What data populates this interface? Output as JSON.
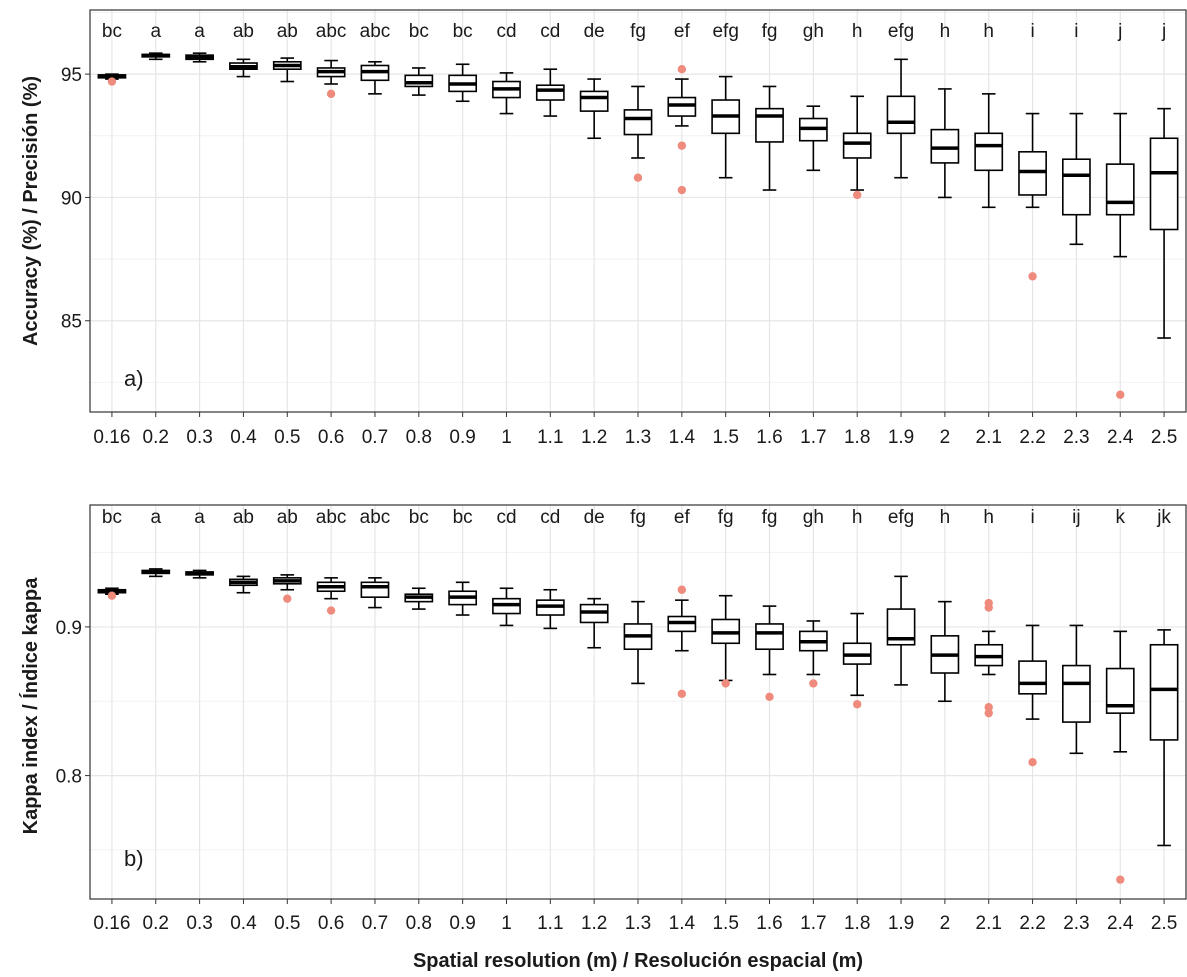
{
  "chart_data": [
    {
      "type": "boxplot",
      "panel_label": "a)",
      "ylabel": "Accuracy (%) / Precisión (%)",
      "xlabel": "",
      "ylim": [
        81.3,
        97.6
      ],
      "yticks": [
        85,
        90,
        95
      ],
      "ytick_labels": [
        "85",
        "90",
        "95"
      ],
      "grid": true,
      "categories": [
        "0.16",
        "0.2",
        "0.3",
        "0.4",
        "0.5",
        "0.6",
        "0.7",
        "0.8",
        "0.9",
        "1",
        "1.1",
        "1.2",
        "1.3",
        "1.4",
        "1.5",
        "1.6",
        "1.7",
        "1.8",
        "1.9",
        "2",
        "2.1",
        "2.2",
        "2.3",
        "2.4",
        "2.5"
      ],
      "significance_letters": [
        "bc",
        "a",
        "a",
        "ab",
        "ab",
        "abc",
        "abc",
        "bc",
        "bc",
        "cd",
        "cd",
        "de",
        "fg",
        "ef",
        "efg",
        "fg",
        "gh",
        "h",
        "efg",
        "h",
        "h",
        "i",
        "i",
        "j",
        "j"
      ],
      "boxes": [
        {
          "low": 94.8,
          "q1": 94.85,
          "median": 94.9,
          "q3": 94.97,
          "high": 95.0,
          "outliers": [
            94.7
          ]
        },
        {
          "low": 95.6,
          "q1": 95.7,
          "median": 95.75,
          "q3": 95.8,
          "high": 95.85,
          "outliers": []
        },
        {
          "low": 95.5,
          "q1": 95.6,
          "median": 95.7,
          "q3": 95.77,
          "high": 95.85,
          "outliers": []
        },
        {
          "low": 94.9,
          "q1": 95.2,
          "median": 95.3,
          "q3": 95.45,
          "high": 95.6,
          "outliers": []
        },
        {
          "low": 94.7,
          "q1": 95.2,
          "median": 95.35,
          "q3": 95.5,
          "high": 95.65,
          "outliers": []
        },
        {
          "low": 94.6,
          "q1": 94.9,
          "median": 95.1,
          "q3": 95.25,
          "high": 95.55,
          "outliers": [
            94.2
          ]
        },
        {
          "low": 94.2,
          "q1": 94.75,
          "median": 95.1,
          "q3": 95.35,
          "high": 95.5,
          "outliers": []
        },
        {
          "low": 94.15,
          "q1": 94.5,
          "median": 94.65,
          "q3": 94.95,
          "high": 95.25,
          "outliers": []
        },
        {
          "low": 93.9,
          "q1": 94.3,
          "median": 94.6,
          "q3": 94.95,
          "high": 95.4,
          "outliers": []
        },
        {
          "low": 93.4,
          "q1": 94.05,
          "median": 94.4,
          "q3": 94.7,
          "high": 95.05,
          "outliers": []
        },
        {
          "low": 93.3,
          "q1": 93.95,
          "median": 94.35,
          "q3": 94.55,
          "high": 95.2,
          "outliers": []
        },
        {
          "low": 92.4,
          "q1": 93.5,
          "median": 94.05,
          "q3": 94.3,
          "high": 94.8,
          "outliers": []
        },
        {
          "low": 91.6,
          "q1": 92.55,
          "median": 93.2,
          "q3": 93.55,
          "high": 94.5,
          "outliers": [
            90.8
          ]
        },
        {
          "low": 92.9,
          "q1": 93.3,
          "median": 93.75,
          "q3": 94.05,
          "high": 94.8,
          "outliers": [
            95.2,
            92.1,
            90.3
          ]
        },
        {
          "low": 90.8,
          "q1": 92.6,
          "median": 93.3,
          "q3": 93.95,
          "high": 94.9,
          "outliers": []
        },
        {
          "low": 90.3,
          "q1": 92.25,
          "median": 93.3,
          "q3": 93.6,
          "high": 94.5,
          "outliers": []
        },
        {
          "low": 91.1,
          "q1": 92.3,
          "median": 92.8,
          "q3": 93.2,
          "high": 93.7,
          "outliers": []
        },
        {
          "low": 90.3,
          "q1": 91.6,
          "median": 92.2,
          "q3": 92.6,
          "high": 94.1,
          "outliers": [
            90.1
          ]
        },
        {
          "low": 90.8,
          "q1": 92.6,
          "median": 93.05,
          "q3": 94.1,
          "high": 95.6,
          "outliers": []
        },
        {
          "low": 90.0,
          "q1": 91.4,
          "median": 92.0,
          "q3": 92.75,
          "high": 94.4,
          "outliers": []
        },
        {
          "low": 89.6,
          "q1": 91.1,
          "median": 92.1,
          "q3": 92.6,
          "high": 94.2,
          "outliers": []
        },
        {
          "low": 89.6,
          "q1": 90.1,
          "median": 91.05,
          "q3": 91.85,
          "high": 93.4,
          "outliers": [
            86.8
          ]
        },
        {
          "low": 88.1,
          "q1": 89.3,
          "median": 90.9,
          "q3": 91.55,
          "high": 93.4,
          "outliers": []
        },
        {
          "low": 87.6,
          "q1": 89.3,
          "median": 89.8,
          "q3": 91.35,
          "high": 93.4,
          "outliers": [
            82.0
          ]
        },
        {
          "low": 84.3,
          "q1": 88.7,
          "median": 91.0,
          "q3": 92.4,
          "high": 93.6,
          "outliers": []
        }
      ]
    },
    {
      "type": "boxplot",
      "panel_label": "b)",
      "ylabel": "Kappa index / Índice kappa",
      "xlabel": "Spatial resolution (m) / Resolución espacial (m)",
      "ylim": [
        0.717,
        0.982
      ],
      "yticks": [
        0.8,
        0.9
      ],
      "ytick_labels": [
        "0.8",
        "0.9"
      ],
      "grid": true,
      "categories": [
        "0.16",
        "0.2",
        "0.3",
        "0.4",
        "0.5",
        "0.6",
        "0.7",
        "0.8",
        "0.9",
        "1",
        "1.1",
        "1.2",
        "1.3",
        "1.4",
        "1.5",
        "1.6",
        "1.7",
        "1.8",
        "1.9",
        "2",
        "2.1",
        "2.2",
        "2.3",
        "2.4",
        "2.5"
      ],
      "significance_letters": [
        "bc",
        "a",
        "a",
        "ab",
        "ab",
        "abc",
        "abc",
        "bc",
        "bc",
        "cd",
        "cd",
        "de",
        "fg",
        "ef",
        "fg",
        "fg",
        "gh",
        "h",
        "efg",
        "h",
        "h",
        "i",
        "ij",
        "k",
        "jk"
      ],
      "boxes": [
        {
          "low": 0.922,
          "q1": 0.923,
          "median": 0.924,
          "q3": 0.925,
          "high": 0.926,
          "outliers": [
            0.921
          ]
        },
        {
          "low": 0.934,
          "q1": 0.936,
          "median": 0.937,
          "q3": 0.938,
          "high": 0.939,
          "outliers": []
        },
        {
          "low": 0.933,
          "q1": 0.935,
          "median": 0.936,
          "q3": 0.937,
          "high": 0.938,
          "outliers": []
        },
        {
          "low": 0.923,
          "q1": 0.928,
          "median": 0.93,
          "q3": 0.932,
          "high": 0.934,
          "outliers": []
        },
        {
          "low": 0.925,
          "q1": 0.929,
          "median": 0.931,
          "q3": 0.933,
          "high": 0.935,
          "outliers": [
            0.919
          ]
        },
        {
          "low": 0.919,
          "q1": 0.924,
          "median": 0.927,
          "q3": 0.93,
          "high": 0.933,
          "outliers": [
            0.911
          ]
        },
        {
          "low": 0.913,
          "q1": 0.92,
          "median": 0.927,
          "q3": 0.93,
          "high": 0.933,
          "outliers": []
        },
        {
          "low": 0.912,
          "q1": 0.917,
          "median": 0.92,
          "q3": 0.922,
          "high": 0.926,
          "outliers": []
        },
        {
          "low": 0.908,
          "q1": 0.915,
          "median": 0.92,
          "q3": 0.924,
          "high": 0.93,
          "outliers": []
        },
        {
          "low": 0.901,
          "q1": 0.909,
          "median": 0.915,
          "q3": 0.919,
          "high": 0.926,
          "outliers": []
        },
        {
          "low": 0.899,
          "q1": 0.908,
          "median": 0.914,
          "q3": 0.918,
          "high": 0.925,
          "outliers": []
        },
        {
          "low": 0.886,
          "q1": 0.903,
          "median": 0.91,
          "q3": 0.915,
          "high": 0.919,
          "outliers": []
        },
        {
          "low": 0.862,
          "q1": 0.885,
          "median": 0.894,
          "q3": 0.902,
          "high": 0.917,
          "outliers": []
        },
        {
          "low": 0.884,
          "q1": 0.897,
          "median": 0.903,
          "q3": 0.907,
          "high": 0.918,
          "outliers": [
            0.925,
            0.855
          ]
        },
        {
          "low": 0.864,
          "q1": 0.889,
          "median": 0.896,
          "q3": 0.905,
          "high": 0.921,
          "outliers": [
            0.862
          ]
        },
        {
          "low": 0.868,
          "q1": 0.885,
          "median": 0.896,
          "q3": 0.902,
          "high": 0.914,
          "outliers": [
            0.853
          ]
        },
        {
          "low": 0.868,
          "q1": 0.884,
          "median": 0.89,
          "q3": 0.897,
          "high": 0.904,
          "outliers": [
            0.862
          ]
        },
        {
          "low": 0.854,
          "q1": 0.875,
          "median": 0.881,
          "q3": 0.889,
          "high": 0.909,
          "outliers": [
            0.848
          ]
        },
        {
          "low": 0.861,
          "q1": 0.888,
          "median": 0.892,
          "q3": 0.912,
          "high": 0.934,
          "outliers": []
        },
        {
          "low": 0.85,
          "q1": 0.869,
          "median": 0.881,
          "q3": 0.894,
          "high": 0.917,
          "outliers": []
        },
        {
          "low": 0.868,
          "q1": 0.874,
          "median": 0.88,
          "q3": 0.888,
          "high": 0.897,
          "outliers": [
            0.916,
            0.913,
            0.846,
            0.842
          ]
        },
        {
          "low": 0.838,
          "q1": 0.855,
          "median": 0.862,
          "q3": 0.877,
          "high": 0.901,
          "outliers": [
            0.809
          ]
        },
        {
          "low": 0.815,
          "q1": 0.836,
          "median": 0.862,
          "q3": 0.874,
          "high": 0.901,
          "outliers": []
        },
        {
          "low": 0.816,
          "q1": 0.842,
          "median": 0.847,
          "q3": 0.872,
          "high": 0.897,
          "outliers": [
            0.73
          ]
        },
        {
          "low": 0.753,
          "q1": 0.824,
          "median": 0.858,
          "q3": 0.888,
          "high": 0.898,
          "outliers": []
        }
      ]
    }
  ],
  "style": {
    "box_color": "#000000",
    "outlier_color": "#ef8b7c",
    "grid_color": "#e6e6e6",
    "grid_minor_color": "#f2f2f2",
    "panel_border_color": "#333333"
  }
}
